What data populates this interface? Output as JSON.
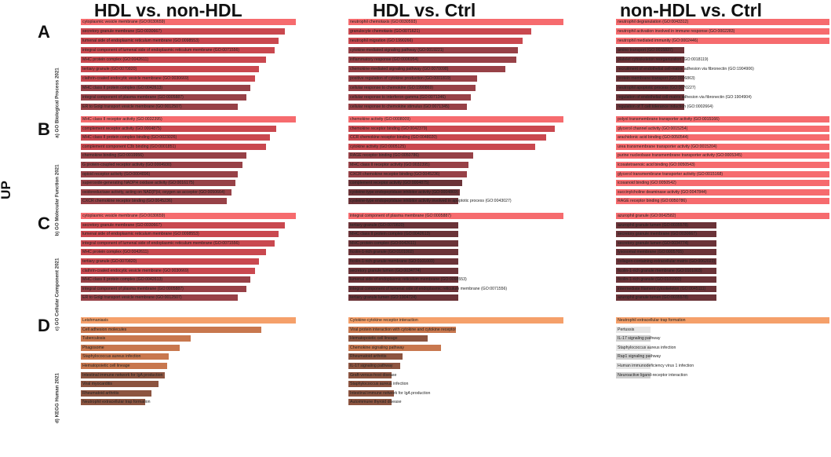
{
  "figure": {
    "col_titles": [
      "HDL vs. non-HDL",
      "HDL vs.  Ctrl",
      "non-HDL vs. Ctrl"
    ],
    "direction_label": "UP",
    "panel_letters": [
      "A",
      "B",
      "C",
      "D"
    ],
    "row_labels": [
      "a) GO Biological Process 2021",
      "b) GO Molecular Function 2021",
      "c) GO Cellular Component 2021",
      "d) KEGG Human 2021"
    ]
  },
  "colors": {
    "top": "#f66b6e",
    "strong": "#c9484f",
    "mid": "#974147",
    "dark": "#6b3338",
    "kegg_top": "#f5a06a",
    "kegg_mid": "#c8774e",
    "kegg_dark": "#8c5440",
    "kegg_grey": "#cfcfcf",
    "kegg_light": "#e6e6e6"
  },
  "chart_data": [
    {
      "type": "bar",
      "title": "a) GO Biological Process 2021 — HDL vs. non-HDL",
      "unit": "relative",
      "values": [
        100,
        95,
        92,
        90,
        86,
        83,
        81,
        79,
        77,
        73
      ],
      "categories": [
        "cytoplasmic vesicle membrane (GO:0030659)",
        "secretory granule membrane (GO:0030667)",
        "lumenal side of endoplasmic reticulum membrane (GO:0098553)",
        "integral component of lumenal side of endoplasmic reticulum membrane (GO:0071556)",
        "MHC protein complex (GO:0042611)",
        "tertiary granule (GO:0070820)",
        "clathrin-coated endocytic vesicle membrane (GO:0030669)",
        "MHC class II protein complex (GO:0042613)",
        "integral component of plasma membrane (GO:0005887)",
        "ER to Golgi transport vesicle membrane (GO:0012507)"
      ]
    },
    {
      "type": "bar",
      "title": "a) GO Biological Process 2021 — HDL vs. Ctrl",
      "unit": "relative",
      "values": [
        100,
        85,
        81,
        79,
        78,
        73,
        60,
        59,
        57,
        55
      ],
      "categories": [
        "neutrophil chemotaxis (GO:0030593)",
        "granulocyte chemotaxis (GO:0071621)",
        "neutrophil migration (GO:1990266)",
        "cytokine-mediated signaling pathway (GO:0019221)",
        "inflammatory response (GO:0006954)",
        "chemokine-mediated signaling pathway (GO:0070098)",
        "positive regulation of cytokine production (GO:0001819)",
        "cellular response to chemokine (GO:1990869)",
        "cellular response to interferon-gamma (GO:0071346)",
        "cellular response to chemokine stimulus (GO:0071345)"
      ]
    },
    {
      "type": "bar",
      "title": "a) GO Biological Process 2021 — non-HDL vs. Ctrl",
      "unit": "relative",
      "values": [
        100,
        100,
        100,
        32,
        32,
        32,
        32,
        32,
        32,
        32
      ],
      "categories": [
        "neutrophil degranulation (GO:0043312)",
        "neutrophil activation involved in immune response (GO:0002283)",
        "neutrophil mediated immunity (GO:0002446)",
        "amino transport (GO:0015837)",
        "platelet cytoskeleton reorganization (GO:0018119)",
        "recruitment of endothelial cell-matrix adhesion via fibronectin (GO:1904906)",
        "protein membrane transport (GO:0006863)",
        "neutrophil apoptotic process (GO:0070227)",
        "regulation of endothelial cell-matrix adhesion via fibronectin (GO:1904904)",
        "regulation of T cell tolerance induction (GO:0002664)"
      ]
    },
    {
      "type": "bar",
      "title": "b) GO Molecular Function 2021 — HDL vs. non-HDL",
      "unit": "relative",
      "values": [
        100,
        91,
        88,
        86,
        77,
        75,
        73,
        72,
        70,
        68
      ],
      "categories": [
        "MHC class II receptor activity (GO:0032395)",
        "complement receptor activity (GO:0004875)",
        "MHC class II protein complex binding (GO:0023026)",
        "complement component C3b binding (GO:0001851)",
        "chemokine binding (GO:0019956)",
        "G protein-coupled receptor activity (GO:0004930)",
        "opioid receptor activity (GO:0004896)",
        "superoxide-generating NADPH oxidase activity (GO:0016175)",
        "oxidoreductase activity, acting on NAD(P)H, oxygen as acceptor (GO:0050664)",
        "CXCR chemokine receptor binding (GO:0045236)"
      ]
    },
    {
      "type": "bar",
      "title": "b) GO Molecular Function 2021 — HDL vs. Ctrl",
      "unit": "relative",
      "values": [
        100,
        96,
        92,
        87,
        58,
        56,
        55,
        53,
        52,
        51
      ],
      "categories": [
        "chemokine activity (GO:0008009)",
        "chemokine receptor binding (GO:0042379)",
        "CCR chemokine receptor binding (GO:0048020)",
        "cytokine activity (GO:0005125)",
        "RAGE receptor binding (GO:0050786)",
        "MHC class II receptor activity (GO:0032395)",
        "CXCR chemokine receptor binding (GO:0045236)",
        "complement receptor activity (GO:0004875)",
        "cysteine-type endopeptidase inhibitor activity (GO:0004869)",
        "cysteine-type endopeptidase inhibitor activity involved in apoptotic process (GO:0043027)"
      ]
    },
    {
      "type": "bar",
      "title": "b) GO Molecular Function 2021 — non-HDL vs. Ctrl",
      "unit": "relative",
      "values": [
        100,
        100,
        100,
        100,
        100,
        100,
        100,
        100,
        100,
        100
      ],
      "categories": [
        "polyol transmembrane transporter activity (GO:0015166)",
        "glycerol channel activity (GO:0015254)",
        "arachidonic acid binding (GO:0050544)",
        "urea transmembrane transporter activity (GO:0015204)",
        "purine nucleobase transmembrane transporter activity (GO:0005345)",
        "icosatetraenoic acid binding (GO:0050543)",
        "glycerol transmembrane transporter activity (GO:0015168)",
        "icosanoid binding (GO:0050542)",
        "succinylcholine deaminase activity (GO:0047844)",
        "RAGE receptor binding (GO:0050786)"
      ]
    },
    {
      "type": "bar",
      "title": "c) GO Cellular Component 2021 — HDL vs. non-HDL",
      "unit": "relative",
      "values": [
        100,
        95,
        92,
        90,
        86,
        83,
        81,
        79,
        77,
        73
      ],
      "categories": [
        "cytoplasmic vesicle membrane (GO:0030659)",
        "secretory granule membrane (GO:0030667)",
        "lumenal side of endoplasmic reticulum membrane (GO:0098553)",
        "integral component of lumenal side of endoplasmic reticulum membrane (GO:0071556)",
        "MHC protein complex (GO:0042611)",
        "tertiary granule (GO:0070820)",
        "clathrin-coated endocytic vesicle membrane (GO:0030669)",
        "MHC class II protein complex (GO:0042613)",
        "integral component of plasma membrane (GO:0005887)",
        "ER to Golgi transport vesicle membrane (GO:0012507)"
      ]
    },
    {
      "type": "bar",
      "title": "c) GO Cellular Component 2021 — HDL vs. Ctrl",
      "unit": "relative",
      "values": [
        100,
        51,
        51,
        51,
        51,
        51,
        51,
        51,
        51,
        51
      ],
      "categories": [
        "integral component of plasma membrane (GO:0005887)",
        "tertiary granule (GO:0070820)",
        "MHC class II protein complex (GO:0042613)",
        "MHC protein complex (GO:0042611)",
        "ficolin-1-rich granule (GO:0101002)",
        "ficolin-1-rich granule membrane (GO:0101003)",
        "secretory granule lumen (GO:0034774)",
        "lumenal side of endoplasmic reticulum membrane (GO:0098553)",
        "integral component of lumenal side of endoplasmic reticulum membrane (GO:0071556)",
        "tertiary granule lumen (GO:1904724)"
      ]
    },
    {
      "type": "bar",
      "title": "c) GO Cellular Component 2021 — non-HDL vs. Ctrl",
      "unit": "relative",
      "values": [
        100,
        47,
        47,
        47,
        47,
        47,
        47,
        47,
        47,
        47
      ],
      "categories": [
        "azurophil granule (GO:0042582)",
        "azurophil granule lumen (GO:0035578)",
        "secretory granule membrane (GO:0030667)",
        "secretory granule lumen (GO:0034774)",
        "lysosomal membrane (GO:0005765)",
        "collagen-containing extracellular matrix (GO:0062023)",
        "ficolin-1-rich granule membrane (GO:0101003)",
        "ficolin-1-rich granule (GO:0101002)",
        "intermediate filament cytoskeleton (GO:0045111)",
        "azurophil granule lumen (GO:0035578)"
      ]
    },
    {
      "type": "bar",
      "title": "d) KEGG Human 2021 — HDL vs. non-HDL",
      "unit": "relative",
      "values": [
        100,
        84,
        51,
        46,
        41,
        40,
        39,
        36,
        33,
        30
      ],
      "categories": [
        "Leishmaniasis",
        "Cell adhesion molecules",
        "Tuberculosis",
        "Phagosome",
        "Staphylococcus aureus infection",
        "Hematopoietic cell lineage",
        "Intestinal immune network for IgA production",
        "Viral myocarditis",
        "Rheumatoid arthritis",
        "Neutrophil extracellular trap formation"
      ]
    },
    {
      "type": "bar",
      "title": "d) KEGG Human 2021 — HDL vs. Ctrl",
      "unit": "relative",
      "values": [
        100,
        50,
        37,
        43,
        25,
        24,
        20,
        20,
        21,
        20
      ],
      "categories": [
        "Cytokine-cytokine receptor interaction",
        "Viral protein interaction with cytokine and cytokine receptor",
        "Hematopoietic cell lineage",
        "Chemokine signaling pathway",
        "Rheumatoid arthritis",
        "IL-17 signaling pathway",
        "Graft-versus-host disease",
        "Staphylococcus aureus infection",
        "Intestinal immune network for IgA production",
        "Autoimmune thyroid disease"
      ]
    },
    {
      "type": "bar",
      "title": "d) KEGG Human 2021 — non-HDL vs. Ctrl",
      "unit": "relative",
      "values": [
        100,
        16,
        16,
        16,
        16,
        16,
        16
      ],
      "categories": [
        "Neutrophil extracellular trap formation",
        "Pertussis",
        "IL-17 signaling pathway",
        "Staphylococcus aureus infection",
        "Rap1 signaling pathway",
        "Human immunodeficiency virus 1 infection",
        "Neuroactive ligand-receptor interaction"
      ]
    }
  ]
}
